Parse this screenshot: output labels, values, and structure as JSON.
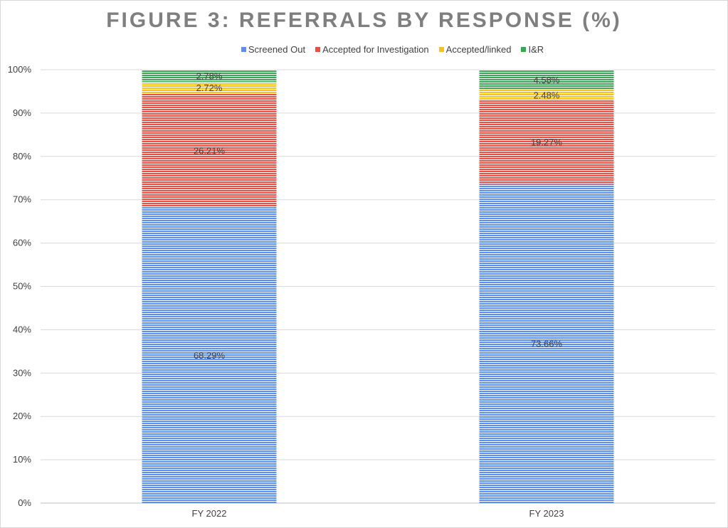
{
  "chart_data": {
    "type": "bar",
    "stacked": true,
    "title": "FIGURE 3: REFERRALS BY RESPONSE (%)",
    "categories": [
      "FY 2022",
      "FY 2023"
    ],
    "series": [
      {
        "name": "Screened Out",
        "color": "#5b8ff0",
        "values": [
          68.29,
          73.66
        ],
        "labels": [
          "68.29%",
          "73.66%"
        ]
      },
      {
        "name": "Accepted for Investigation",
        "color": "#ea4f43",
        "values": [
          26.21,
          19.27
        ],
        "labels": [
          "26.21%",
          "19.27%"
        ]
      },
      {
        "name": "Accepted/linked",
        "color": "#f7c21d",
        "values": [
          2.72,
          2.48
        ],
        "labels": [
          "2.72%",
          "2.48%"
        ]
      },
      {
        "name": "I&R",
        "color": "#3da556",
        "values": [
          2.78,
          4.58
        ],
        "labels": [
          "2.78%",
          "4.58%"
        ]
      }
    ],
    "ylim": [
      0,
      100
    ],
    "yticks": [
      "0%",
      "10%",
      "20%",
      "30%",
      "40%",
      "50%",
      "60%",
      "70%",
      "80%",
      "90%",
      "100%"
    ],
    "grid": true,
    "legend": "top",
    "fill_pattern": "horizontal-stripes"
  }
}
